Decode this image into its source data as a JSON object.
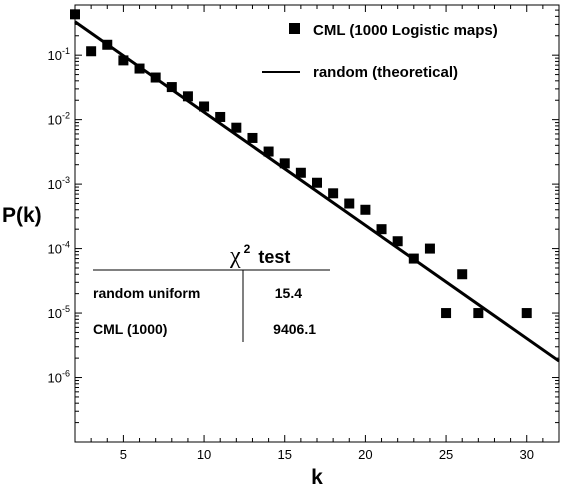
{
  "chart_data": {
    "type": "scatter",
    "xlabel": "k",
    "ylabel": "P(k)",
    "xlim": [
      2,
      32
    ],
    "ylim": [
      1e-07,
      0.6
    ],
    "yscale": "log",
    "grid": false,
    "legend_position": "top-right",
    "x_ticks": [
      5,
      10,
      15,
      20,
      25,
      30
    ],
    "y_ticks": [
      {
        "value": 0.1,
        "base": "10",
        "exp": "-1"
      },
      {
        "value": 0.01,
        "base": "10",
        "exp": "-2"
      },
      {
        "value": 0.001,
        "base": "10",
        "exp": "-3"
      },
      {
        "value": 0.0001,
        "base": "10",
        "exp": "-4"
      },
      {
        "value": 1e-05,
        "base": "10",
        "exp": "-5"
      },
      {
        "value": 1e-06,
        "base": "10",
        "exp": "-6"
      }
    ],
    "series": [
      {
        "name": "CML (1000 Logistic maps)",
        "type": "scatter",
        "marker": "square",
        "color": "#000000",
        "points": [
          [
            2,
            0.43
          ],
          [
            3,
            0.115
          ],
          [
            4,
            0.145
          ],
          [
            5,
            0.083
          ],
          [
            6,
            0.062
          ],
          [
            7,
            0.045
          ],
          [
            8,
            0.032
          ],
          [
            9,
            0.023
          ],
          [
            10,
            0.016
          ],
          [
            11,
            0.011
          ],
          [
            12,
            0.0075
          ],
          [
            13,
            0.0052
          ],
          [
            14,
            0.0032
          ],
          [
            15,
            0.0021
          ],
          [
            16,
            0.0015
          ],
          [
            17,
            0.00105
          ],
          [
            18,
            0.00072
          ],
          [
            19,
            0.0005
          ],
          [
            20,
            0.0004
          ],
          [
            21,
            0.0002
          ],
          [
            22,
            0.00013
          ],
          [
            23,
            7e-05
          ],
          [
            24,
            0.0001
          ],
          [
            25,
            1e-05
          ],
          [
            26,
            4e-05
          ],
          [
            27,
            1e-05
          ],
          [
            30,
            1e-05
          ]
        ]
      },
      {
        "name": "random (theoretical)",
        "type": "line",
        "color": "#000000",
        "points": [
          [
            2,
            0.33
          ],
          [
            32,
            1.8e-06
          ]
        ]
      }
    ],
    "table": {
      "chi_symbol": "χ",
      "chi_exponent": "2",
      "title_suffix": "test",
      "rows": [
        {
          "label": "random uniform",
          "value": "15.4"
        },
        {
          "label": "CML (1000)",
          "value": "9406.1"
        }
      ]
    }
  }
}
